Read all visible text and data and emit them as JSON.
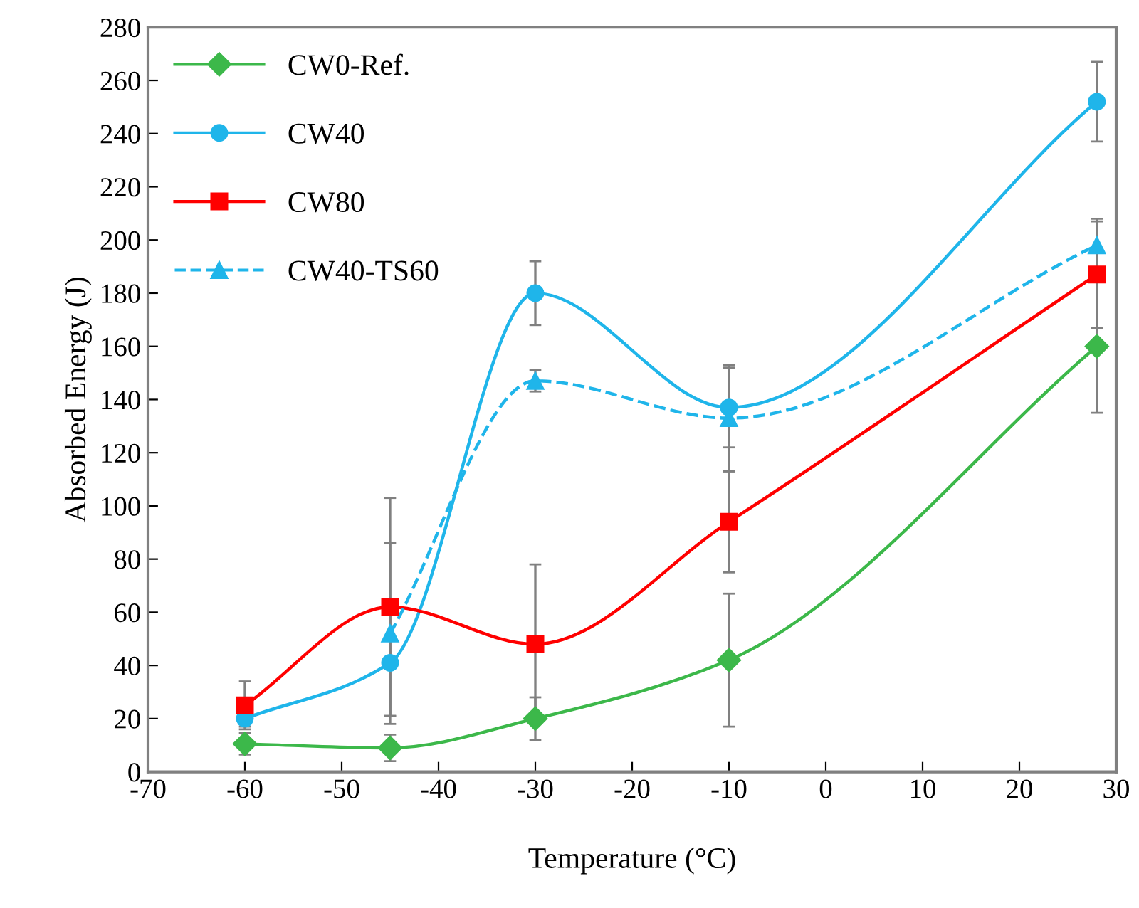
{
  "chart_data": {
    "type": "line",
    "xlabel": "Temperature (°C)",
    "ylabel": "Absorbed Energy (J)",
    "x": [
      -60,
      -45,
      -30,
      -10,
      28
    ],
    "series": [
      {
        "name": "CW0-Ref.",
        "color": "#3cb84a",
        "marker": "diamond",
        "line_style": "solid",
        "values": [
          10.5,
          9,
          20,
          42,
          160
        ],
        "errors": [
          4,
          5,
          8,
          25,
          25
        ]
      },
      {
        "name": "CW40",
        "color": "#1fb5ea",
        "marker": "circle",
        "line_style": "solid",
        "values": [
          20,
          41,
          180,
          137,
          252
        ],
        "errors": [
          3,
          20,
          12,
          15,
          15
        ]
      },
      {
        "name": "CW80",
        "color": "#ff0000",
        "marker": "square",
        "line_style": "solid",
        "values": [
          25,
          62,
          48,
          94,
          187
        ],
        "errors": [
          9,
          41,
          30,
          19,
          20
        ]
      },
      {
        "name": "CW40-TS60",
        "color": "#1fb5ea",
        "marker": "triangle",
        "line_style": "dashed",
        "x": [
          -45,
          -30,
          -10,
          28
        ],
        "values": [
          52,
          147,
          133,
          198
        ],
        "errors": [
          34,
          4,
          20,
          10
        ]
      }
    ],
    "xlim": [
      -70,
      30
    ],
    "xticks": [
      -70,
      -60,
      -50,
      -40,
      -30,
      -20,
      -10,
      0,
      10,
      20,
      30
    ],
    "ylim": [
      0,
      280
    ],
    "yticks": [
      0,
      20,
      40,
      60,
      80,
      100,
      120,
      140,
      160,
      180,
      200,
      220,
      240,
      260,
      280
    ],
    "grid": false,
    "legend": "top left"
  }
}
